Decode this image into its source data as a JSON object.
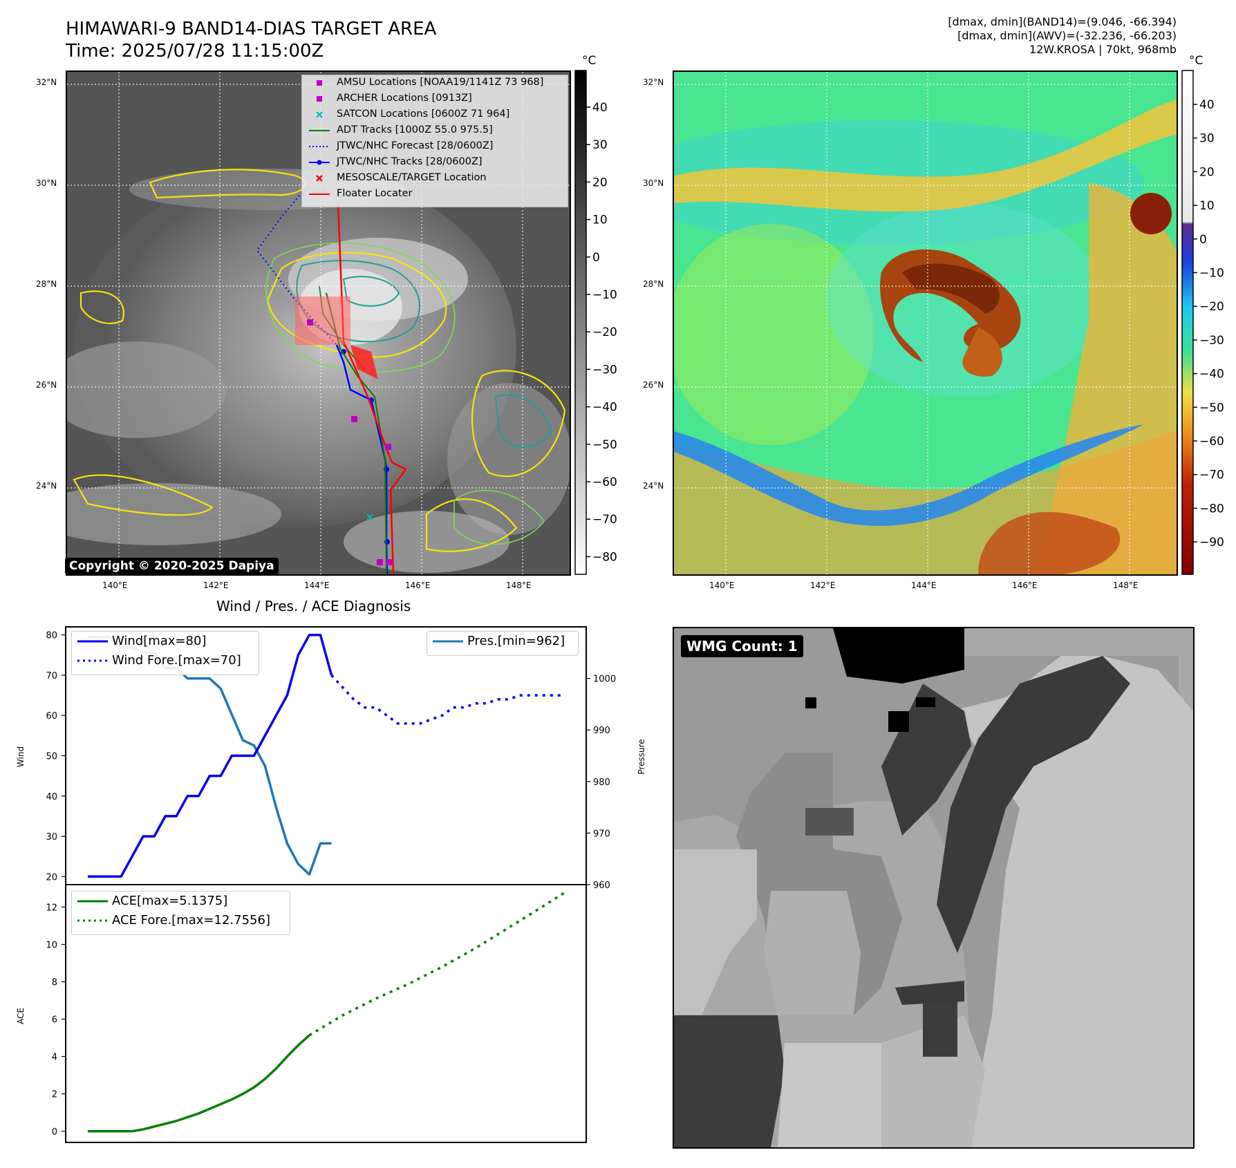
{
  "header": {
    "title_line1": "HIMAWARI-9 BAND14-DIAS TARGET AREA",
    "title_line2": "Time: 2025/07/28 11:15:00Z",
    "stats_line1": "[dmax, dmin](BAND14)=(9.046, -66.394)",
    "stats_line2": "[dmax, dmin](AWV)=(-32.236, -66.203)",
    "stats_line3": "12W.KROSA | 70kt, 968mb"
  },
  "colors": {
    "wind": "#0000ee",
    "pressure": "#1f77b4",
    "ace": "#008000",
    "adt": "#008000",
    "jtwc": "#0000ff",
    "floater": "#ff0000",
    "amsu": "#c000c0",
    "satcon": "#00b3b3"
  },
  "map": {
    "lat_labels": [
      "32°N",
      "30°N",
      "28°N",
      "26°N",
      "24°N"
    ],
    "lon_labels": [
      "140°E",
      "142°E",
      "144°E",
      "146°E",
      "148°E"
    ],
    "colorbar_unit": "°C",
    "ir_colorbar_ticks": [
      "40",
      "30",
      "20",
      "10",
      "0",
      "−10",
      "−20",
      "−30",
      "−40",
      "−50",
      "−60",
      "−70",
      "−80"
    ],
    "awv_colorbar_ticks": [
      "40",
      "30",
      "20",
      "10",
      "0",
      "−10",
      "−20",
      "−30",
      "−40",
      "−50",
      "−60",
      "−70",
      "−80",
      "−90"
    ],
    "copyright": "Copyright © 2020-2025 Dapiya",
    "legend": [
      {
        "label": "AMSU Locations [NOAA19/1141Z 73 968]",
        "symbol": "square",
        "color": "#c000c0"
      },
      {
        "label": "ARCHER Locations [0913Z]",
        "symbol": "square",
        "color": "#c000c0"
      },
      {
        "label": "SATCON Locations [0600Z 71 964]",
        "symbol": "x",
        "color": "#00b3b3"
      },
      {
        "label": "ADT Tracks [1000Z 55.0 975.5]",
        "symbol": "line",
        "color": "#008000"
      },
      {
        "label": "JTWC/NHC Forecast [28/0600Z]",
        "symbol": "dotted",
        "color": "#0000ff"
      },
      {
        "label": "JTWC/NHC Tracks [28/0600Z]",
        "symbol": "line-dot",
        "color": "#0000ff"
      },
      {
        "label": "MESOSCALE/TARGET Location",
        "symbol": "x",
        "color": "#ff0000"
      },
      {
        "label": "Floater Locater",
        "symbol": "line",
        "color": "#ff0000"
      }
    ]
  },
  "diagnosis": {
    "title": "Wind / Pres. / ACE Diagnosis",
    "wind_axis_label": "Wind",
    "pressure_axis_label": "Pressure",
    "ace_axis_label": "ACE",
    "legend_wind": "Wind[max=80]",
    "legend_wind_fore": "Wind Fore.[max=70]",
    "legend_pres": "Pres.[min=962]",
    "legend_ace": "ACE[max=5.1375]",
    "legend_ace_fore": "ACE Fore.[max=12.7556]"
  },
  "wmg": {
    "badge": "WMG Count: 1"
  },
  "chart_data": [
    {
      "type": "line",
      "name": "wind",
      "x": [
        0,
        1,
        2,
        3,
        4,
        5,
        6,
        7,
        8,
        9,
        10,
        11,
        12,
        13,
        14,
        15,
        16,
        17,
        18,
        19,
        20,
        21,
        22,
        23,
        24,
        25,
        26,
        27,
        28,
        29,
        30,
        31,
        32,
        33,
        34,
        35,
        36,
        37,
        38,
        39,
        40,
        41,
        42,
        43
      ],
      "values": [
        20,
        20,
        20,
        20,
        25,
        30,
        30,
        35,
        35,
        40,
        40,
        45,
        45,
        50,
        50,
        50,
        55,
        60,
        65,
        75,
        80,
        80,
        70,
        null,
        null,
        null,
        null,
        null,
        null,
        null,
        null,
        null,
        null,
        null,
        null,
        null,
        null,
        null,
        null,
        null,
        null,
        null,
        null,
        null
      ],
      "forecast_x": [
        22,
        23,
        24,
        25,
        26,
        27,
        28,
        29,
        30,
        31,
        32,
        33,
        34,
        35,
        36,
        37,
        38,
        39,
        40,
        41,
        42,
        43
      ],
      "forecast_values": [
        70,
        67,
        64,
        62,
        62,
        60,
        58,
        58,
        58,
        59,
        60,
        62,
        62,
        63,
        63,
        64,
        64,
        65,
        65,
        65,
        65,
        65
      ],
      "ylim": [
        18,
        82
      ],
      "yticks": [
        20,
        30,
        40,
        50,
        60,
        70,
        80
      ]
    },
    {
      "type": "line",
      "name": "pressure",
      "x": [
        0,
        1,
        2,
        3,
        4,
        5,
        6,
        7,
        8,
        9,
        10,
        11,
        12,
        13,
        14,
        15,
        16,
        17,
        18,
        19,
        20,
        21,
        22
      ],
      "values": [
        1008,
        1008,
        1008,
        1006,
        1006,
        1005,
        1005,
        1002,
        1002,
        1000,
        1000,
        1000,
        998,
        993,
        988,
        987,
        983,
        975,
        968,
        964,
        962,
        968,
        968
      ],
      "ylim": [
        960,
        1010
      ],
      "yticks": [
        960,
        970,
        980,
        990,
        1000
      ]
    },
    {
      "type": "line",
      "name": "ace",
      "x": [
        0,
        1,
        2,
        3,
        4,
        5,
        6,
        7,
        8,
        9,
        10,
        11,
        12,
        13,
        14,
        15,
        16,
        17,
        18,
        19,
        20,
        21,
        22
      ],
      "values": [
        0,
        0,
        0,
        0,
        0,
        0.1,
        0.25,
        0.4,
        0.55,
        0.75,
        0.95,
        1.2,
        1.45,
        1.7,
        2.0,
        2.35,
        2.8,
        3.35,
        4.0,
        4.6,
        5.1375,
        null,
        null
      ],
      "forecast_x": [
        20,
        23,
        26,
        29,
        32,
        35,
        38,
        41,
        43
      ],
      "forecast_values": [
        5.1375,
        6.2,
        7.1,
        7.9,
        8.8,
        9.8,
        10.9,
        12.0,
        12.7556
      ],
      "ylim": [
        -0.6,
        13.2
      ],
      "yticks": [
        0,
        2,
        4,
        6,
        8,
        10,
        12
      ]
    }
  ]
}
